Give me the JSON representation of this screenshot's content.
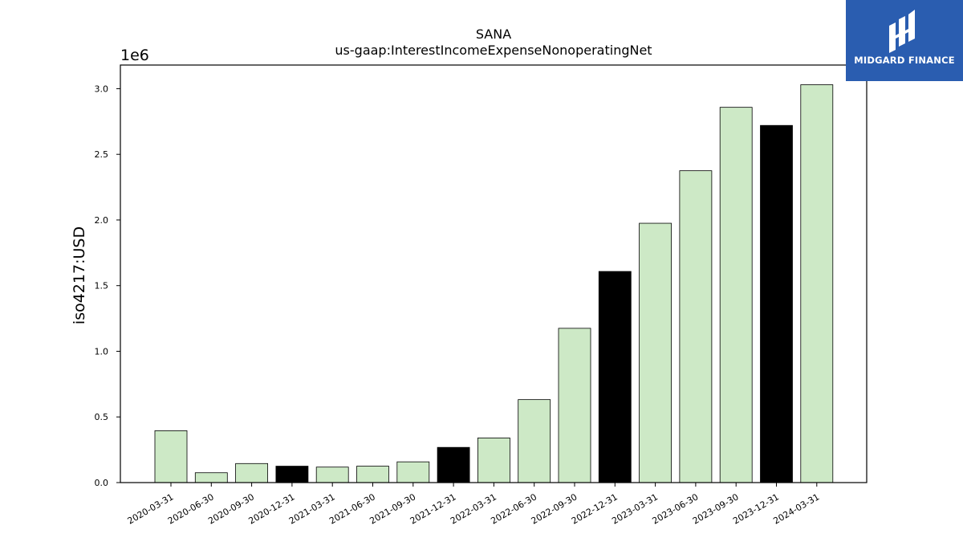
{
  "chart_data": {
    "type": "bar",
    "title": "SANA",
    "subtitle": "us-gaap:InterestIncomeExpenseNonoperatingNet",
    "ylabel": "iso4217:USD",
    "offset_label": "1e6",
    "ylim": [
      0,
      3180000
    ],
    "yticks": [
      0,
      500000,
      1000000,
      1500000,
      2000000,
      2500000,
      3000000
    ],
    "ytick_labels": [
      "0.0",
      "0.5",
      "1.0",
      "1.5",
      "2.0",
      "2.5",
      "3.0"
    ],
    "categories": [
      "2020-03-31",
      "2020-06-30",
      "2020-09-30",
      "2020-12-31",
      "2021-03-31",
      "2021-06-30",
      "2021-09-30",
      "2021-12-31",
      "2022-03-31",
      "2022-06-30",
      "2022-09-30",
      "2022-12-31",
      "2023-03-31",
      "2023-06-30",
      "2023-09-30",
      "2023-12-31",
      "2024-03-31"
    ],
    "values": [
      395000,
      75000,
      145000,
      125000,
      118000,
      125000,
      158000,
      268000,
      340000,
      632000,
      1175000,
      1608000,
      1975000,
      2375000,
      2858000,
      2720000,
      3030000
    ],
    "bar_colors": [
      "#cde9c6",
      "#cde9c6",
      "#cde9c6",
      "#000000",
      "#cde9c6",
      "#cde9c6",
      "#cde9c6",
      "#000000",
      "#cde9c6",
      "#cde9c6",
      "#cde9c6",
      "#000000",
      "#cde9c6",
      "#cde9c6",
      "#cde9c6",
      "#000000",
      "#cde9c6"
    ],
    "grid": false
  },
  "logo": {
    "text": "MIDGARD FINANCE",
    "icon": "midgard-logo-icon",
    "color": "#2a5db0"
  }
}
